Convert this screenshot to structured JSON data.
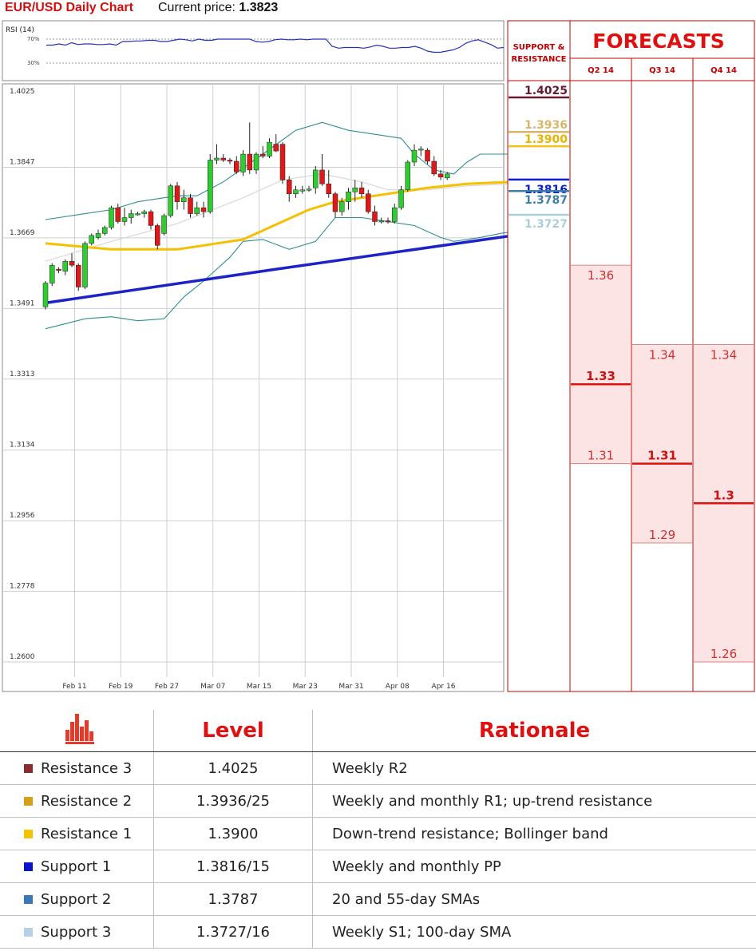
{
  "header": {
    "title": "EUR/USD Daily Chart",
    "price_label": "Current price:",
    "price": "1.3823"
  },
  "rsi": {
    "label": "RSI (14)",
    "upper": "70%",
    "lower": "30%",
    "upper_value": 70,
    "lower_value": 30,
    "values": [
      60,
      60,
      62,
      60,
      64,
      61,
      62,
      62,
      61,
      61,
      62,
      60,
      66,
      66,
      67,
      67,
      68,
      68,
      66,
      66,
      68,
      70,
      69,
      67,
      70,
      68,
      68,
      70,
      70,
      70,
      70,
      70,
      70,
      66,
      65,
      66,
      69,
      70,
      69,
      69,
      70,
      69,
      70,
      70,
      70,
      58,
      55,
      56,
      56,
      56,
      55,
      57,
      60,
      58,
      55,
      55,
      56,
      56,
      58,
      55,
      50,
      48,
      48,
      50,
      52,
      56,
      63,
      67,
      69,
      65,
      61,
      55,
      56
    ]
  },
  "chart_data": {
    "type": "candlestick",
    "yticks": [
      "1.4025",
      "1.3847",
      "1.3669",
      "1.3491",
      "1.3313",
      "1.3134",
      "1.2956",
      "1.2778",
      "1.2600"
    ],
    "ylim": [
      1.26,
      1.4025
    ],
    "xticks": [
      "Feb 11",
      "Feb 19",
      "Feb 27",
      "Mar 07",
      "Mar 15",
      "Mar 23",
      "Mar 31",
      "Apr 08",
      "Apr 16"
    ],
    "xtick_index": [
      2,
      9,
      16,
      23,
      30,
      37,
      44,
      51,
      58
    ],
    "candles": [
      [
        1.3495,
        1.356,
        1.3488,
        1.3555
      ],
      [
        1.3555,
        1.3605,
        1.3548,
        1.36
      ],
      [
        1.359,
        1.3595,
        1.358,
        1.3588
      ],
      [
        1.3585,
        1.3615,
        1.3575,
        1.361
      ],
      [
        1.361,
        1.363,
        1.3595,
        1.36
      ],
      [
        1.36,
        1.3605,
        1.3535,
        1.3545
      ],
      [
        1.3545,
        1.366,
        1.354,
        1.3655
      ],
      [
        1.3655,
        1.368,
        1.365,
        1.3675
      ],
      [
        1.367,
        1.369,
        1.3665,
        1.368
      ],
      [
        1.368,
        1.37,
        1.3675,
        1.3695
      ],
      [
        1.3695,
        1.375,
        1.369,
        1.3745
      ],
      [
        1.3745,
        1.3755,
        1.3705,
        1.371
      ],
      [
        1.371,
        1.3745,
        1.37,
        1.372
      ],
      [
        1.372,
        1.374,
        1.3705,
        1.373
      ],
      [
        1.373,
        1.3735,
        1.3725,
        1.373
      ],
      [
        1.373,
        1.374,
        1.372,
        1.3735
      ],
      [
        1.3735,
        1.374,
        1.369,
        1.37
      ],
      [
        1.37,
        1.3705,
        1.364,
        1.365
      ],
      [
        1.368,
        1.373,
        1.3675,
        1.3725
      ],
      [
        1.3725,
        1.3805,
        1.372,
        1.38
      ],
      [
        1.38,
        1.381,
        1.374,
        1.376
      ],
      [
        1.376,
        1.379,
        1.374,
        1.377
      ],
      [
        1.377,
        1.378,
        1.372,
        1.373
      ],
      [
        1.373,
        1.376,
        1.3725,
        1.3745
      ],
      [
        1.3745,
        1.376,
        1.372,
        1.3735
      ],
      [
        1.3735,
        1.388,
        1.373,
        1.3865
      ],
      [
        1.3865,
        1.3905,
        1.3855,
        1.387
      ],
      [
        1.387,
        1.388,
        1.386,
        1.3865
      ],
      [
        1.3865,
        1.387,
        1.3855,
        1.3862
      ],
      [
        1.3862,
        1.3875,
        1.383,
        1.3835
      ],
      [
        1.3835,
        1.389,
        1.3825,
        1.388
      ],
      [
        1.388,
        1.396,
        1.383,
        1.384
      ],
      [
        1.384,
        1.3885,
        1.383,
        1.388
      ],
      [
        1.388,
        1.39,
        1.387,
        1.3875
      ],
      [
        1.3875,
        1.392,
        1.387,
        1.391
      ],
      [
        1.3905,
        1.393,
        1.3885,
        1.3888
      ],
      [
        1.3905,
        1.391,
        1.3805,
        1.3815
      ],
      [
        1.3815,
        1.3825,
        1.376,
        1.378
      ],
      [
        1.378,
        1.38,
        1.377,
        1.379
      ],
      [
        1.379,
        1.38,
        1.378,
        1.379
      ],
      [
        1.379,
        1.38,
        1.3785,
        1.3792
      ],
      [
        1.3795,
        1.385,
        1.378,
        1.384
      ],
      [
        1.384,
        1.388,
        1.38,
        1.3805
      ],
      [
        1.3805,
        1.384,
        1.377,
        1.378
      ],
      [
        1.378,
        1.3785,
        1.372,
        1.3735
      ],
      [
        1.3735,
        1.377,
        1.3725,
        1.376
      ],
      [
        1.376,
        1.3795,
        1.374,
        1.3785
      ],
      [
        1.3785,
        1.3815,
        1.376,
        1.3795
      ],
      [
        1.3795,
        1.381,
        1.377,
        1.378
      ],
      [
        1.378,
        1.379,
        1.373,
        1.3735
      ],
      [
        1.3735,
        1.375,
        1.37,
        1.371
      ],
      [
        1.371,
        1.372,
        1.3705,
        1.3712
      ],
      [
        1.3712,
        1.372,
        1.3705,
        1.371
      ],
      [
        1.371,
        1.3755,
        1.3705,
        1.3745
      ],
      [
        1.3745,
        1.38,
        1.374,
        1.379
      ],
      [
        1.379,
        1.3865,
        1.3785,
        1.386
      ],
      [
        1.386,
        1.3905,
        1.385,
        1.389
      ],
      [
        1.389,
        1.39,
        1.3875,
        1.3893
      ],
      [
        1.389,
        1.3895,
        1.3855,
        1.3862
      ],
      [
        1.3862,
        1.3875,
        1.3825,
        1.383
      ],
      [
        1.383,
        1.384,
        1.3815,
        1.3822
      ],
      [
        1.382,
        1.3835,
        1.3815,
        1.383
      ]
    ],
    "sma_100": [
      [
        0,
        1.3505
      ],
      [
        35,
        1.359
      ],
      [
        71,
        1.3675
      ]
    ],
    "sma_yellow": [
      [
        0,
        1.3655
      ],
      [
        10,
        1.364
      ],
      [
        20,
        1.364
      ],
      [
        30,
        1.3665
      ],
      [
        36,
        1.371
      ],
      [
        40,
        1.374
      ],
      [
        44,
        1.376
      ],
      [
        48,
        1.377
      ],
      [
        52,
        1.378
      ],
      [
        58,
        1.3795
      ],
      [
        64,
        1.3805
      ],
      [
        68,
        1.3808
      ],
      [
        71,
        1.381
      ]
    ],
    "sma_grey": [
      [
        0,
        1.361
      ],
      [
        10,
        1.366
      ],
      [
        20,
        1.3705
      ],
      [
        30,
        1.377
      ],
      [
        36,
        1.3815
      ],
      [
        42,
        1.383
      ],
      [
        48,
        1.381
      ],
      [
        52,
        1.379
      ],
      [
        58,
        1.379
      ],
      [
        64,
        1.38
      ],
      [
        71,
        1.3805
      ]
    ],
    "bb_upper": [
      [
        0,
        1.3715
      ],
      [
        6,
        1.373
      ],
      [
        10,
        1.374
      ],
      [
        14,
        1.376
      ],
      [
        20,
        1.3775
      ],
      [
        23,
        1.3775
      ],
      [
        27,
        1.381
      ],
      [
        33,
        1.388
      ],
      [
        38,
        1.394
      ],
      [
        42,
        1.396
      ],
      [
        46,
        1.394
      ],
      [
        50,
        1.393
      ],
      [
        54,
        1.392
      ],
      [
        56,
        1.388
      ],
      [
        59,
        1.384
      ],
      [
        62,
        1.383
      ],
      [
        64,
        1.386
      ],
      [
        66,
        1.388
      ],
      [
        69,
        1.388
      ],
      [
        71,
        1.388
      ]
    ],
    "bb_lower": [
      [
        0,
        1.344
      ],
      [
        6,
        1.3465
      ],
      [
        10,
        1.347
      ],
      [
        14,
        1.346
      ],
      [
        18,
        1.3465
      ],
      [
        21,
        1.352
      ],
      [
        24,
        1.356
      ],
      [
        28,
        1.362
      ],
      [
        30,
        1.366
      ],
      [
        33,
        1.3665
      ],
      [
        37,
        1.364
      ],
      [
        41,
        1.366
      ],
      [
        44,
        1.372
      ],
      [
        48,
        1.372
      ],
      [
        52,
        1.371
      ],
      [
        56,
        1.37
      ],
      [
        60,
        1.367
      ],
      [
        62,
        1.366
      ],
      [
        66,
        1.367
      ],
      [
        69,
        1.368
      ],
      [
        71,
        1.3685
      ]
    ]
  },
  "levels": {
    "header": "SUPPORT & RESISTANCE",
    "r3": {
      "label": "1.4025",
      "value": 1.4025,
      "color": "#6a1a2e"
    },
    "r2": {
      "label": "1.3936",
      "value": 1.3936,
      "color": "#d9b56b"
    },
    "r1": {
      "label": "1.3900",
      "value": 1.39,
      "color": "#f3c21a"
    },
    "s1": {
      "label": "1.3816",
      "value": 1.3816,
      "color": "#0a1fcf"
    },
    "s2": {
      "label": "1.3787",
      "value": 1.3787,
      "color": "#3d7fa6"
    },
    "s3": {
      "label": "1.3727",
      "value": 1.3727,
      "color": "#a8d0d8"
    }
  },
  "forecasts": {
    "title": "FORECASTS",
    "columns": [
      {
        "quarter": "Q2 14",
        "high": "1.36",
        "mid": "1.33",
        "low": "1.31",
        "high_value": 1.36,
        "mid_value": 1.33,
        "low_value": 1.31
      },
      {
        "quarter": "Q3 14",
        "high": "1.34",
        "mid": "1.31",
        "low": "1.29",
        "high_value": 1.34,
        "mid_value": 1.31,
        "low_value": 1.29
      },
      {
        "quarter": "Q4 14",
        "high": "1.34",
        "mid": "1.3",
        "low": "1.26",
        "high_value": 1.34,
        "mid_value": 1.3,
        "low_value": 1.26
      }
    ]
  },
  "table": {
    "headers": {
      "level": "Level",
      "rationale": "Rationale"
    },
    "rows": [
      {
        "name": "Resistance 3",
        "level": "1.4025",
        "rationale": "Weekly R2",
        "color": "#8b2b2b"
      },
      {
        "name": "Resistance 2",
        "level": "1.3936/25",
        "rationale": "Weekly and monthly R1; up-trend resistance",
        "color": "#d4a017"
      },
      {
        "name": "Resistance 1",
        "level": "1.3900",
        "rationale": "Down-trend resistance; Bollinger band",
        "color": "#f5c400"
      },
      {
        "name": "Support 1",
        "level": "1.3816/15",
        "rationale": "Weekly and monthly PP",
        "color": "#0a14c8"
      },
      {
        "name": "Support 2",
        "level": "1.3787",
        "rationale": "20 and 55-day SMAs",
        "color": "#3a78b8"
      },
      {
        "name": "Support 3",
        "level": "1.3727/16",
        "rationale": "Weekly S1; 100-day SMA",
        "color": "#b8cfe8"
      }
    ]
  }
}
